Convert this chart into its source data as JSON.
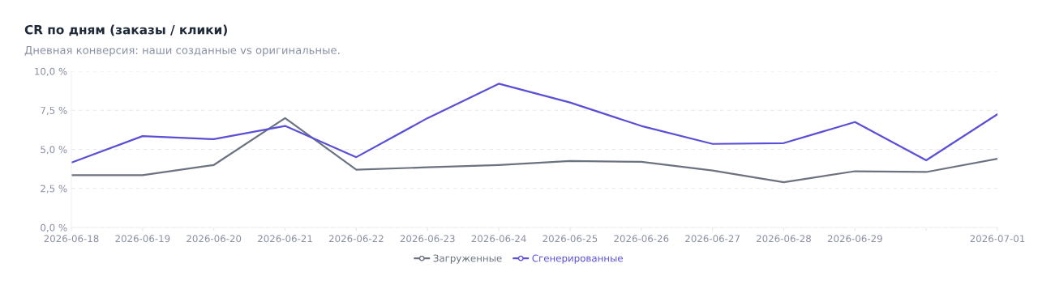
{
  "chart_data": {
    "type": "line",
    "title": "CR по дням (заказы / клики)",
    "subtitle": "Дневная конверсия: наши созданные vs оригинальные.",
    "categories": [
      "2026-06-18",
      "2026-06-19",
      "2026-06-20",
      "2026-06-21",
      "2026-06-22",
      "2026-06-23",
      "2026-06-24",
      "2026-06-25",
      "2026-06-26",
      "2026-06-27",
      "2026-06-28",
      "2026-06-29",
      null,
      "2026-07-01"
    ],
    "series": [
      {
        "name": "Загруженные",
        "color": "#6b7280",
        "values": [
          3.35,
          3.35,
          4.0,
          7.0,
          3.7,
          3.85,
          4.0,
          4.25,
          4.2,
          3.65,
          2.9,
          3.6,
          3.55,
          4.4
        ]
      },
      {
        "name": "Сгенерированные",
        "color": "#5b4fd6",
        "values": [
          4.15,
          5.85,
          5.65,
          6.5,
          4.5,
          7.0,
          9.2,
          8.0,
          6.5,
          5.35,
          5.4,
          6.75,
          4.3,
          7.25
        ]
      }
    ],
    "ylim": [
      0,
      10
    ],
    "yticks": [
      {
        "value": 0,
        "label": "0,0 %"
      },
      {
        "value": 2.5,
        "label": "2,5 %"
      },
      {
        "value": 5,
        "label": "5,0 %"
      },
      {
        "value": 7.5,
        "label": "7,5 %"
      },
      {
        "value": 10,
        "label": "10,0 %"
      }
    ],
    "grid": "y",
    "legend": "bottom",
    "marker": "none",
    "line_style": "solid"
  }
}
